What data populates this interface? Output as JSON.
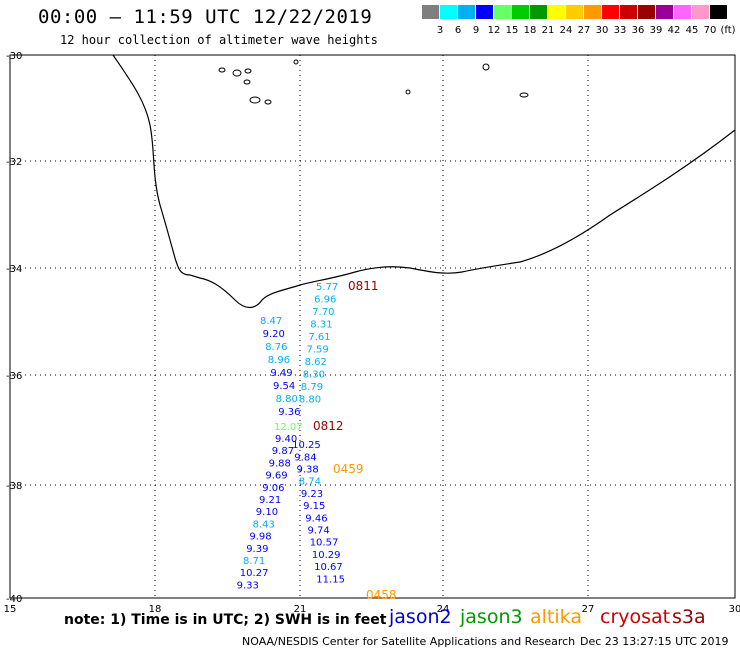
{
  "header": {
    "title": "00:00 – 11:59 UTC 12/22/2019",
    "subtitle": "12 hour collection of altimeter wave heights"
  },
  "legend": {
    "colors": [
      "#7f7f7f",
      "#00ffff",
      "#00b0f0",
      "#0000ff",
      "#66ff66",
      "#00cc00",
      "#009900",
      "#ffff00",
      "#ffcc00",
      "#ff9900",
      "#ff0000",
      "#cc0000",
      "#990000",
      "#990099",
      "#ff66ff",
      "#ff99cc",
      "#000000"
    ],
    "labels": [
      "3",
      "6",
      "9",
      "12",
      "15",
      "18",
      "21",
      "24",
      "27",
      "30",
      "33",
      "36",
      "39",
      "42",
      "45",
      "70",
      "(ft)"
    ]
  },
  "axes": {
    "lat_labels": [
      "-30",
      "-32",
      "-34",
      "-36",
      "-38",
      "-40"
    ],
    "lon_labels": [
      "15",
      "18",
      "21",
      "24",
      "27",
      "30"
    ]
  },
  "tracks": [
    {
      "pass": "0811",
      "pass_color": "#990000",
      "side": "right",
      "points": [
        {
          "v": "5.77",
          "c": "#00b0f0"
        },
        {
          "v": "6.96",
          "c": "#00b0f0"
        },
        {
          "v": "7.70",
          "c": "#00b0f0"
        },
        {
          "v": "8.31",
          "c": "#00b0f0"
        },
        {
          "v": "7.61",
          "c": "#00b0f0"
        },
        {
          "v": "7.59",
          "c": "#00b0f0"
        },
        {
          "v": "8.62",
          "c": "#00b0f0"
        },
        {
          "v": "8.30",
          "c": "#00b0f0"
        },
        {
          "v": "8.79",
          "c": "#00b0f0"
        },
        {
          "v": "8.80",
          "c": "#00b0f0"
        }
      ]
    },
    {
      "pass": "",
      "side": "left",
      "points": [
        {
          "v": "8.47",
          "c": "#00b0f0"
        },
        {
          "v": "9.20",
          "c": "#0000ff"
        },
        {
          "v": "8.76",
          "c": "#00b0f0"
        },
        {
          "v": "8.96",
          "c": "#00b0f0"
        },
        {
          "v": "9.49",
          "c": "#0000ff"
        },
        {
          "v": "9.54",
          "c": "#0000ff"
        },
        {
          "v": "8.80",
          "c": "#00b0f0"
        },
        {
          "v": "9.36",
          "c": "#0000ff"
        }
      ]
    },
    {
      "pass": "0812",
      "pass_color": "#990000",
      "extra": {
        "v": "12.07",
        "c": "#66ff66"
      },
      "points": [
        {
          "v": "9.40",
          "c": "#0000ff"
        },
        {
          "v": "10.25",
          "c": "#0000ff"
        },
        {
          "v": "9.87",
          "c": "#0000ff"
        },
        {
          "v": "9.84",
          "c": "#0000ff"
        },
        {
          "v": "9.88",
          "c": "#0000ff"
        },
        {
          "v": "9.38",
          "c": "#0000ff"
        },
        {
          "v": "9.69",
          "c": "#0000ff"
        },
        {
          "v": "8.74",
          "c": "#00b0f0"
        },
        {
          "v": "9.06",
          "c": "#0000ff"
        },
        {
          "v": "9.23",
          "c": "#0000ff"
        },
        {
          "v": "9.21",
          "c": "#0000ff"
        },
        {
          "v": "9.15",
          "c": "#0000ff"
        },
        {
          "v": "9.10",
          "c": "#0000ff"
        },
        {
          "v": "9.46",
          "c": "#0000ff"
        },
        {
          "v": "8.43",
          "c": "#00b0f0"
        },
        {
          "v": "9.74",
          "c": "#0000ff"
        },
        {
          "v": "9.98",
          "c": "#0000ff"
        },
        {
          "v": "10.57",
          "c": "#0000ff"
        },
        {
          "v": "9.39",
          "c": "#0000ff"
        },
        {
          "v": "10.29",
          "c": "#0000ff"
        },
        {
          "v": "8.71",
          "c": "#00b0f0"
        },
        {
          "v": "10.67",
          "c": "#0000ff"
        },
        {
          "v": "10.27",
          "c": "#0000ff"
        },
        {
          "v": "11.15",
          "c": "#0000ff"
        },
        {
          "v": "9.33",
          "c": "#0000ff"
        }
      ]
    },
    {
      "pass_labels": [
        {
          "text": "0459",
          "c": "#ff9900"
        },
        {
          "text": "0458",
          "c": "#ff9900"
        }
      ]
    }
  ],
  "note": "note:  1) Time is in UTC;  2) SWH is in feet",
  "satellites": [
    {
      "name": "jason2",
      "color": "#0000cc"
    },
    {
      "name": "jason3",
      "color": "#009900"
    },
    {
      "name": "altika",
      "color": "#ff9900"
    },
    {
      "name": "cryosat",
      "color": "#cc0000"
    },
    {
      "name": "s3a",
      "color": "#990000"
    }
  ],
  "footer": {
    "credit": "NOAA/NESDIS Center for Satellite Applications and Research",
    "timestamp": "Dec 23 13:27:15 UTC 2019"
  }
}
